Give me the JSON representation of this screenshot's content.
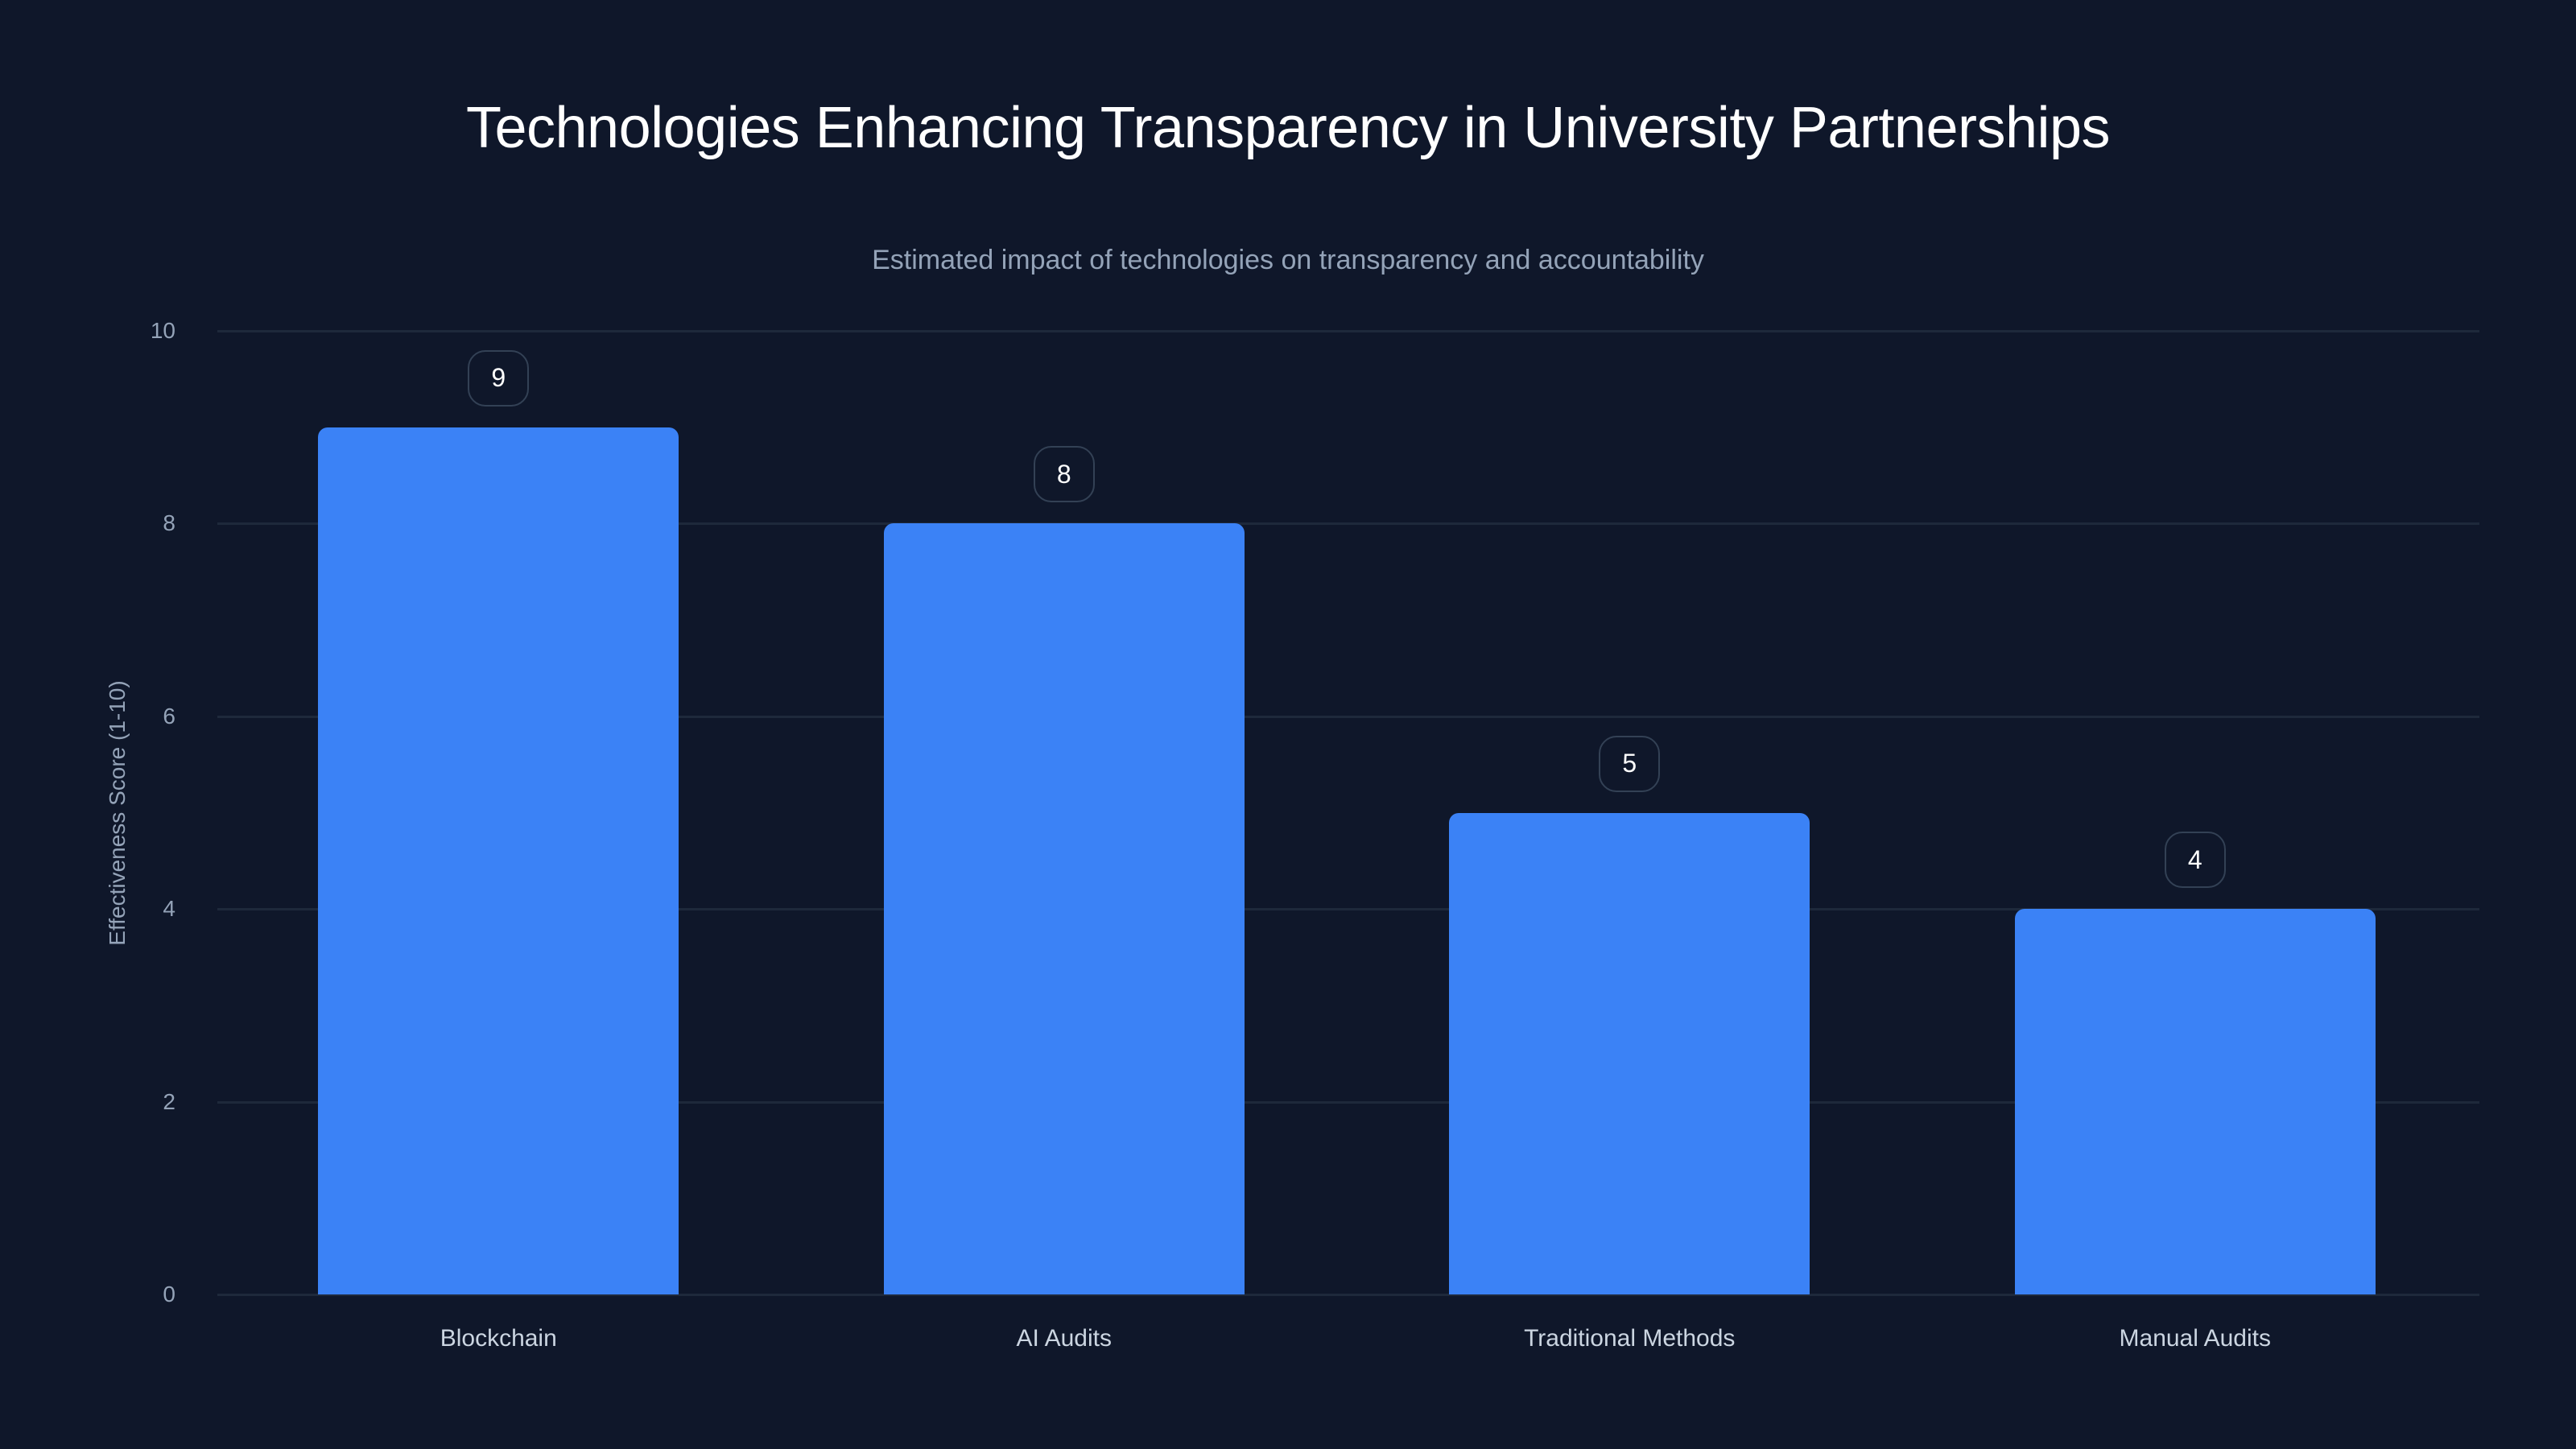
{
  "header": {
    "title": "Technologies Enhancing Transparency in University Partnerships",
    "subtitle": "Estimated impact of technologies on transparency and accountability"
  },
  "axes": {
    "y_label": "Effectiveness Score (1-10)",
    "y_ticks": [
      "0",
      "2",
      "4",
      "6",
      "8",
      "10"
    ]
  },
  "bars": [
    {
      "label": "Blockchain",
      "value": "9"
    },
    {
      "label": "AI Audits",
      "value": "8"
    },
    {
      "label": "Traditional Methods",
      "value": "5"
    },
    {
      "label": "Manual Audits",
      "value": "4"
    }
  ],
  "colors": {
    "background": "#0f172a",
    "bar": "#3b82f6",
    "grid": "#1e293b",
    "badge_border": "#334155",
    "axis_text": "#94a3b8"
  },
  "chart_data": {
    "type": "bar",
    "title": "Technologies Enhancing Transparency in University Partnerships",
    "subtitle": "Estimated impact of technologies on transparency and accountability",
    "categories": [
      "Blockchain",
      "AI Audits",
      "Traditional Methods",
      "Manual Audits"
    ],
    "values": [
      9,
      8,
      5,
      4
    ],
    "xlabel": "",
    "ylabel": "Effectiveness Score (1-10)",
    "ylim": [
      0,
      10
    ],
    "yticks": [
      0,
      2,
      4,
      6,
      8,
      10
    ],
    "grid": true,
    "legend": null,
    "data_labels": true
  }
}
